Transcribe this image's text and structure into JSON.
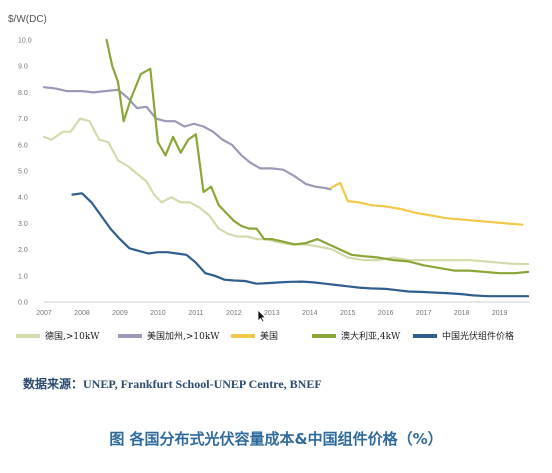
{
  "chart_data": {
    "type": "line",
    "title": "",
    "xlabel": "",
    "ylabel": "$/W(DC)",
    "ylim": [
      0,
      10
    ],
    "xlim": [
      2007,
      2019.8
    ],
    "y_ticks": [
      "0.0",
      "1.0",
      "2.0",
      "3.0",
      "4.0",
      "5.0",
      "6.0",
      "7.0",
      "8.0",
      "9.0",
      "10.0"
    ],
    "x_ticks": [
      "2007",
      "2008",
      "2009",
      "2010",
      "2011",
      "2012",
      "2013",
      "2014",
      "2015",
      "2016",
      "2017",
      "2018",
      "2019"
    ],
    "grid": false,
    "legend_position": "bottom",
    "series": [
      {
        "name": "德国,>10kW",
        "color": "#d3dbac",
        "points": [
          [
            2007.0,
            6.3
          ],
          [
            2007.2,
            6.2
          ],
          [
            2007.5,
            6.5
          ],
          [
            2007.7,
            6.5
          ],
          [
            2007.95,
            7.0
          ],
          [
            2008.2,
            6.9
          ],
          [
            2008.45,
            6.2
          ],
          [
            2008.7,
            6.1
          ],
          [
            2008.95,
            5.4
          ],
          [
            2009.2,
            5.2
          ],
          [
            2009.45,
            4.9
          ],
          [
            2009.7,
            4.6
          ],
          [
            2009.9,
            4.1
          ],
          [
            2010.1,
            3.8
          ],
          [
            2010.35,
            4.0
          ],
          [
            2010.6,
            3.8
          ],
          [
            2010.85,
            3.8
          ],
          [
            2011.1,
            3.6
          ],
          [
            2011.35,
            3.3
          ],
          [
            2011.6,
            2.8
          ],
          [
            2011.85,
            2.6
          ],
          [
            2012.1,
            2.5
          ],
          [
            2012.35,
            2.5
          ],
          [
            2012.6,
            2.4
          ],
          [
            2012.85,
            2.4
          ],
          [
            2013.1,
            2.3
          ],
          [
            2013.5,
            2.2
          ],
          [
            2013.9,
            2.2
          ],
          [
            2014.3,
            2.1
          ],
          [
            2014.6,
            2.0
          ],
          [
            2015.0,
            1.7
          ],
          [
            2015.4,
            1.6
          ],
          [
            2015.8,
            1.6
          ],
          [
            2016.2,
            1.7
          ],
          [
            2016.6,
            1.6
          ],
          [
            2017.0,
            1.6
          ],
          [
            2017.4,
            1.6
          ],
          [
            2017.8,
            1.6
          ],
          [
            2018.2,
            1.6
          ],
          [
            2018.6,
            1.55
          ],
          [
            2019.0,
            1.5
          ],
          [
            2019.4,
            1.45
          ],
          [
            2019.75,
            1.45
          ]
        ]
      },
      {
        "name": "美国加州,>10kW",
        "color": "#9a9ab8",
        "points": [
          [
            2007.0,
            8.2
          ],
          [
            2007.3,
            8.15
          ],
          [
            2007.6,
            8.05
          ],
          [
            2008.0,
            8.05
          ],
          [
            2008.3,
            8.0
          ],
          [
            2008.6,
            8.05
          ],
          [
            2008.95,
            8.1
          ],
          [
            2009.2,
            7.8
          ],
          [
            2009.45,
            7.4
          ],
          [
            2009.7,
            7.45
          ],
          [
            2009.95,
            7.0
          ],
          [
            2010.2,
            6.9
          ],
          [
            2010.45,
            6.9
          ],
          [
            2010.7,
            6.7
          ],
          [
            2010.95,
            6.8
          ],
          [
            2011.2,
            6.7
          ],
          [
            2011.45,
            6.5
          ],
          [
            2011.7,
            6.2
          ],
          [
            2011.95,
            6.0
          ],
          [
            2012.2,
            5.6
          ],
          [
            2012.45,
            5.3
          ],
          [
            2012.7,
            5.1
          ],
          [
            2013.0,
            5.1
          ],
          [
            2013.3,
            5.05
          ],
          [
            2013.6,
            4.8
          ],
          [
            2013.9,
            4.5
          ],
          [
            2014.15,
            4.4
          ],
          [
            2014.4,
            4.35
          ],
          [
            2014.55,
            4.3
          ]
        ]
      },
      {
        "name": "美国",
        "color": "#f2c94a",
        "points": [
          [
            2014.55,
            4.35
          ],
          [
            2014.8,
            4.55
          ],
          [
            2015.0,
            3.85
          ],
          [
            2015.3,
            3.8
          ],
          [
            2015.6,
            3.7
          ],
          [
            2016.0,
            3.65
          ],
          [
            2016.4,
            3.55
          ],
          [
            2016.8,
            3.4
          ],
          [
            2017.2,
            3.3
          ],
          [
            2017.6,
            3.2
          ],
          [
            2018.0,
            3.15
          ],
          [
            2018.4,
            3.1
          ],
          [
            2018.8,
            3.05
          ],
          [
            2019.2,
            3.0
          ],
          [
            2019.6,
            2.95
          ]
        ]
      },
      {
        "name": "澳大利亚,4kW",
        "color": "#8aa636",
        "points": [
          [
            2008.65,
            10.0
          ],
          [
            2008.8,
            9.0
          ],
          [
            2008.95,
            8.4
          ],
          [
            2009.1,
            6.9
          ],
          [
            2009.3,
            7.8
          ],
          [
            2009.55,
            8.7
          ],
          [
            2009.8,
            8.9
          ],
          [
            2010.0,
            6.1
          ],
          [
            2010.2,
            5.6
          ],
          [
            2010.4,
            6.3
          ],
          [
            2010.6,
            5.7
          ],
          [
            2010.8,
            6.2
          ],
          [
            2011.0,
            6.4
          ],
          [
            2011.2,
            4.2
          ],
          [
            2011.4,
            4.4
          ],
          [
            2011.6,
            3.7
          ],
          [
            2011.8,
            3.4
          ],
          [
            2012.0,
            3.1
          ],
          [
            2012.2,
            2.9
          ],
          [
            2012.4,
            2.8
          ],
          [
            2012.6,
            2.8
          ],
          [
            2012.8,
            2.4
          ],
          [
            2013.0,
            2.4
          ],
          [
            2013.3,
            2.3
          ],
          [
            2013.6,
            2.2
          ],
          [
            2013.9,
            2.25
          ],
          [
            2014.2,
            2.4
          ],
          [
            2014.5,
            2.2
          ],
          [
            2014.8,
            2.0
          ],
          [
            2015.1,
            1.8
          ],
          [
            2015.4,
            1.75
          ],
          [
            2015.8,
            1.7
          ],
          [
            2016.2,
            1.6
          ],
          [
            2016.6,
            1.55
          ],
          [
            2017.0,
            1.4
          ],
          [
            2017.4,
            1.3
          ],
          [
            2017.8,
            1.2
          ],
          [
            2018.2,
            1.2
          ],
          [
            2018.6,
            1.15
          ],
          [
            2019.0,
            1.1
          ],
          [
            2019.4,
            1.1
          ],
          [
            2019.75,
            1.15
          ]
        ]
      },
      {
        "name": "中国光伏组件价格",
        "color": "#2f5e8e",
        "points": [
          [
            2007.75,
            4.1
          ],
          [
            2008.0,
            4.15
          ],
          [
            2008.25,
            3.8
          ],
          [
            2008.5,
            3.3
          ],
          [
            2008.75,
            2.8
          ],
          [
            2009.0,
            2.4
          ],
          [
            2009.25,
            2.05
          ],
          [
            2009.5,
            1.95
          ],
          [
            2009.75,
            1.85
          ],
          [
            2010.0,
            1.9
          ],
          [
            2010.25,
            1.9
          ],
          [
            2010.5,
            1.85
          ],
          [
            2010.75,
            1.8
          ],
          [
            2011.0,
            1.5
          ],
          [
            2011.25,
            1.1
          ],
          [
            2011.5,
            1.0
          ],
          [
            2011.75,
            0.85
          ],
          [
            2012.0,
            0.82
          ],
          [
            2012.3,
            0.8
          ],
          [
            2012.6,
            0.7
          ],
          [
            2012.9,
            0.72
          ],
          [
            2013.2,
            0.75
          ],
          [
            2013.5,
            0.77
          ],
          [
            2013.8,
            0.78
          ],
          [
            2014.1,
            0.75
          ],
          [
            2014.4,
            0.7
          ],
          [
            2014.7,
            0.65
          ],
          [
            2015.0,
            0.6
          ],
          [
            2015.3,
            0.55
          ],
          [
            2015.6,
            0.52
          ],
          [
            2016.0,
            0.5
          ],
          [
            2016.3,
            0.45
          ],
          [
            2016.6,
            0.4
          ],
          [
            2017.0,
            0.38
          ],
          [
            2017.3,
            0.36
          ],
          [
            2017.6,
            0.34
          ],
          [
            2018.0,
            0.3
          ],
          [
            2018.3,
            0.25
          ],
          [
            2018.7,
            0.22
          ],
          [
            2019.0,
            0.22
          ],
          [
            2019.4,
            0.22
          ],
          [
            2019.75,
            0.22
          ]
        ]
      }
    ]
  },
  "source_text": "数据来源：UNEP, Frankfurt School-UNEP Centre, BNEF",
  "caption": "图 各国分布式光伏容量成本&中国组件价格（%）"
}
